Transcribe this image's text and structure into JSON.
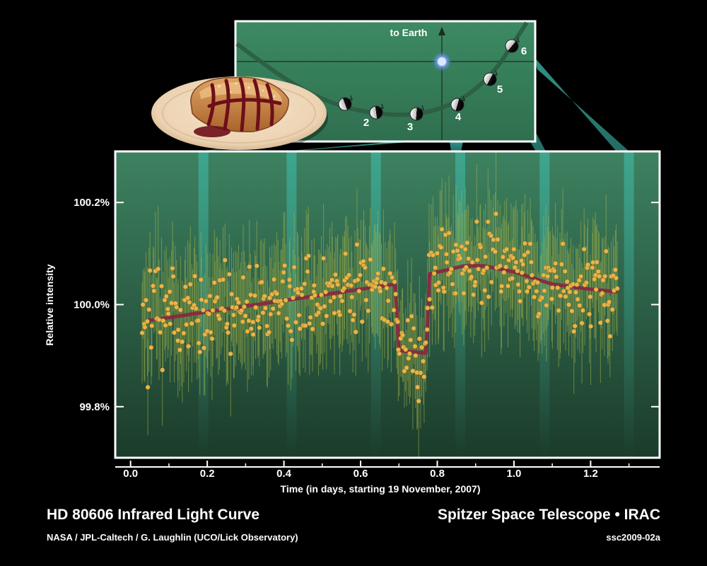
{
  "footer": {
    "title": "HD 80606 Infrared Light Curve",
    "credit": "NASA / JPL-Caltech / G. Laughlin (UCO/Lick Observatory)",
    "mission": "Spitzer Space Telescope • IRAC",
    "image_id": "ssc2009-02a"
  },
  "inset": {
    "earth_label": "to Earth",
    "positions": [
      "2",
      "3",
      "4",
      "5",
      "6"
    ]
  },
  "colors": {
    "background": "#000000",
    "plot_top": "#3d8261",
    "plot_bottom": "#1b3b2a",
    "highlight_band": "#3fc4b4",
    "data_point": "#e8b54a",
    "error_bar": "#a8b548",
    "model_curve": "#8c2440",
    "frame": "#ffffff"
  },
  "chart_data": {
    "type": "scatter",
    "xlabel": "Time (in days, starting 19 November, 2007)",
    "ylabel": "Relative intensity",
    "xlim": [
      -0.04,
      1.38
    ],
    "ylim": [
      99.7,
      100.3
    ],
    "xticks": [
      "0.0",
      "0.2",
      "0.4",
      "0.6",
      "0.8",
      "1.0",
      "1.2"
    ],
    "xtick_values": [
      0.0,
      0.2,
      0.4,
      0.6,
      0.8,
      1.0,
      1.2
    ],
    "yticks": [
      "99.8%",
      "100.0%",
      "100.2%"
    ],
    "ytick_values": [
      99.8,
      100.0,
      100.2
    ],
    "grid": false,
    "highlight_times": [
      0.19,
      0.42,
      0.64,
      0.86,
      1.08,
      1.3
    ],
    "model": {
      "x": [
        0.04,
        0.69,
        0.695,
        0.7,
        0.77,
        0.775,
        0.78,
        0.87,
        0.92,
        1.0,
        1.1,
        1.2,
        1.27
      ],
      "y": [
        99.968,
        100.04,
        99.98,
        99.91,
        99.905,
        99.97,
        100.06,
        100.076,
        100.076,
        100.064,
        100.04,
        100.03,
        100.025
      ]
    },
    "points": {
      "x_start": 0.03,
      "x_end": 1.27,
      "scatter_sigma_percent": 0.075,
      "error_bar_half_length_percent": 0.095,
      "secondary_eclipse_start": 0.7,
      "secondary_eclipse_end": 0.78
    }
  }
}
